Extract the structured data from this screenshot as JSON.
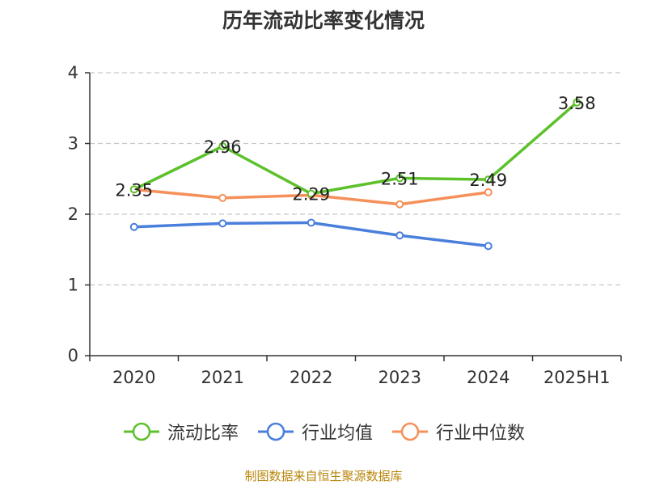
{
  "chart_data": {
    "type": "line",
    "title": "历年流动比率变化情况",
    "categories": [
      "2020",
      "2021",
      "2022",
      "2023",
      "2024",
      "2025H1"
    ],
    "ylim": [
      0,
      4
    ],
    "yticks": [
      0,
      1,
      2,
      3,
      4
    ],
    "grid": true,
    "legend_position": "bottom",
    "series": [
      {
        "name": "流动比率",
        "color": "#5cc12b",
        "values": [
          2.35,
          2.96,
          2.29,
          2.51,
          2.49,
          3.58
        ],
        "labels": [
          "2.35",
          "2.96",
          "2.29",
          "2.51",
          "2.49",
          "3.58"
        ]
      },
      {
        "name": "行业均值",
        "color": "#4a7fdc",
        "values": [
          1.82,
          1.87,
          1.88,
          1.7,
          1.55,
          null
        ]
      },
      {
        "name": "行业中位数",
        "color": "#f5905a",
        "values": [
          2.35,
          2.23,
          2.27,
          2.14,
          2.31,
          null
        ]
      }
    ]
  },
  "source_note": "制图数据来自恒生聚源数据库"
}
